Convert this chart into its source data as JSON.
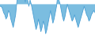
{
  "values": [
    2.0,
    2.0,
    1.5,
    0.5,
    0.0,
    -1.0,
    -0.5,
    1.0,
    0.5,
    -1.0,
    -2.0,
    -3.0,
    -1.5,
    0.0,
    3.0,
    5.0,
    4.0,
    5.5,
    4.0,
    5.0,
    4.5,
    3.0,
    4.5,
    3.5,
    2.0,
    3.5,
    2.5,
    1.0,
    -0.5,
    -2.0,
    -3.5,
    -2.5,
    -1.0,
    -2.5,
    -4.0,
    -3.0,
    -1.5,
    -2.5,
    -4.5,
    -3.5,
    -2.0,
    -0.5,
    1.0,
    -0.5,
    -2.0,
    -1.0,
    0.5,
    2.0,
    4.5,
    3.5,
    2.5,
    1.0,
    -0.5,
    -1.5,
    -0.5,
    1.0,
    2.5,
    1.5,
    0.5,
    -0.5,
    -1.5,
    -1.0,
    0.0,
    -1.0,
    -2.0,
    -3.0,
    -2.0,
    -1.0,
    0.0,
    1.0,
    2.0,
    1.0,
    0.0,
    -0.5,
    -1.5,
    -1.0,
    0.0,
    0.5,
    1.0,
    0.5
  ],
  "line_color": "#4a9fd4",
  "fill_color": "#7bbde0",
  "background_color": "#ffffff",
  "linewidth": 0.6,
  "baseline": 2.5
}
